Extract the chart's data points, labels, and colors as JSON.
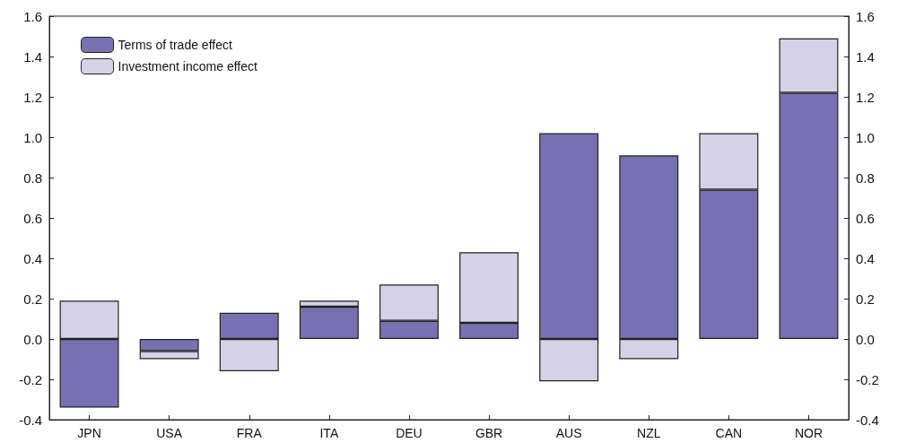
{
  "chart_data": {
    "type": "bar",
    "stacked": true,
    "categories": [
      "JPN",
      "USA",
      "FRA",
      "ITA",
      "DEU",
      "GBR",
      "AUS",
      "NZL",
      "CAN",
      "NOR"
    ],
    "series": [
      {
        "name": "Terms of trade effect",
        "color": "#7771b1",
        "values": [
          -0.34,
          -0.06,
          0.13,
          0.16,
          0.09,
          0.08,
          1.02,
          0.91,
          0.74,
          1.22
        ]
      },
      {
        "name": "Investment income effect",
        "color": "#d5d2e8",
        "values": [
          0.19,
          -0.04,
          -0.16,
          0.03,
          0.18,
          0.35,
          -0.21,
          -0.1,
          0.28,
          0.27
        ]
      }
    ],
    "ylim": [
      -0.4,
      1.6
    ],
    "yticks": [
      -0.4,
      -0.2,
      {
        "value": 0,
        "label": "0.0"
      },
      0.2,
      0.4,
      0.6,
      0.8,
      {
        "value": 1,
        "label": "1.0"
      },
      1.2,
      1.4,
      1.6
    ],
    "y2lim": [
      -0.4,
      1.6
    ],
    "y2ticks": [
      -0.4,
      -0.2,
      {
        "value": 0,
        "label": "0.0"
      },
      0.2,
      0.4,
      0.6,
      0.8,
      {
        "value": 1,
        "label": "1.0"
      },
      1.2,
      1.4,
      1.6
    ],
    "grid": false,
    "legend": "top left"
  }
}
